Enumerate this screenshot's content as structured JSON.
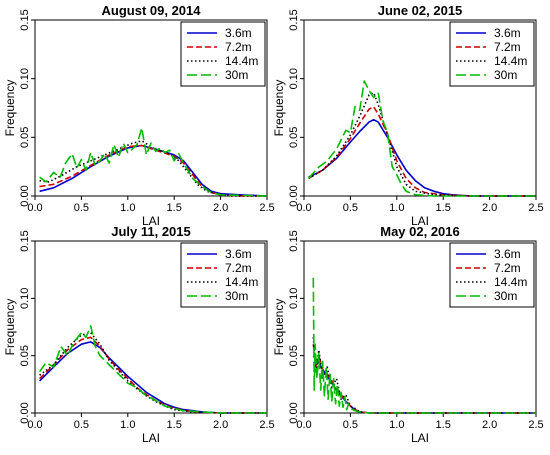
{
  "chart_data": [
    {
      "type": "line",
      "title": "August 09, 2014",
      "xlabel": "LAI",
      "ylabel": "Frequency",
      "xlim": [
        0,
        2.5
      ],
      "ylim": [
        0,
        0.15
      ],
      "xticks": [
        0.0,
        0.5,
        1.0,
        1.5,
        2.0,
        2.5
      ],
      "yticks": [
        0.0,
        0.05,
        0.1,
        0.15
      ],
      "xtick_labels": [
        "0.0",
        "0.5",
        "1.0",
        "1.5",
        "2.0",
        "2.5"
      ],
      "ytick_labels": [
        "0.00",
        "0.05",
        "0.10",
        "0.15"
      ],
      "legend": "top-right",
      "series": [
        {
          "name": "3.6m",
          "color": "#0000cc",
          "dash": "solid",
          "x": [
            0.05,
            0.2,
            0.4,
            0.6,
            0.8,
            1.0,
            1.15,
            1.3,
            1.5,
            1.6,
            1.7,
            1.8,
            1.9,
            2.0,
            2.2,
            2.5
          ],
          "y": [
            0.004,
            0.007,
            0.015,
            0.025,
            0.034,
            0.041,
            0.043,
            0.04,
            0.035,
            0.03,
            0.02,
            0.01,
            0.004,
            0.002,
            0.001,
            0.0
          ]
        },
        {
          "name": "7.2m",
          "color": "#cc0000",
          "dash": "dashed",
          "x": [
            0.05,
            0.2,
            0.4,
            0.6,
            0.8,
            1.0,
            1.15,
            1.3,
            1.5,
            1.6,
            1.7,
            1.8,
            1.9,
            2.0,
            2.2,
            2.5
          ],
          "y": [
            0.008,
            0.01,
            0.017,
            0.026,
            0.035,
            0.042,
            0.043,
            0.039,
            0.034,
            0.028,
            0.018,
            0.008,
            0.003,
            0.001,
            0.0,
            0.0
          ]
        },
        {
          "name": "14.4m",
          "color": "#000000",
          "dash": "dotted",
          "x": [
            0.05,
            0.15,
            0.3,
            0.45,
            0.6,
            0.75,
            0.9,
            1.05,
            1.15,
            1.3,
            1.45,
            1.55,
            1.65,
            1.75,
            1.85,
            1.95,
            2.1,
            2.5
          ],
          "y": [
            0.013,
            0.012,
            0.018,
            0.025,
            0.03,
            0.035,
            0.04,
            0.045,
            0.047,
            0.04,
            0.036,
            0.03,
            0.02,
            0.01,
            0.004,
            0.002,
            0.0,
            0.0
          ]
        },
        {
          "name": "30m",
          "color": "#00bb00",
          "dash": "longdash",
          "x": [
            0.05,
            0.12,
            0.2,
            0.27,
            0.33,
            0.4,
            0.45,
            0.5,
            0.55,
            0.6,
            0.65,
            0.7,
            0.75,
            0.8,
            0.85,
            0.9,
            0.95,
            1.0,
            1.05,
            1.1,
            1.15,
            1.2,
            1.25,
            1.3,
            1.35,
            1.4,
            1.45,
            1.5,
            1.55,
            1.6,
            1.7,
            1.8,
            1.9,
            2.0,
            2.5
          ],
          "y": [
            0.016,
            0.012,
            0.02,
            0.016,
            0.028,
            0.036,
            0.024,
            0.031,
            0.022,
            0.037,
            0.026,
            0.03,
            0.036,
            0.028,
            0.044,
            0.033,
            0.045,
            0.037,
            0.04,
            0.044,
            0.058,
            0.035,
            0.045,
            0.038,
            0.041,
            0.037,
            0.039,
            0.03,
            0.036,
            0.028,
            0.015,
            0.008,
            0.003,
            0.001,
            0.0
          ]
        }
      ]
    },
    {
      "type": "line",
      "title": "June 02, 2015",
      "xlabel": "LAI",
      "ylabel": "Frequency",
      "xlim": [
        0,
        2.5
      ],
      "ylim": [
        0,
        0.15
      ],
      "xticks": [
        0.0,
        0.5,
        1.0,
        1.5,
        2.0,
        2.5
      ],
      "yticks": [
        0.0,
        0.05,
        0.1,
        0.15
      ],
      "xtick_labels": [
        "0.0",
        "0.5",
        "1.0",
        "1.5",
        "2.0",
        "2.5"
      ],
      "ytick_labels": [
        "0.00",
        "0.05",
        "0.10",
        "0.15"
      ],
      "legend": "top-right",
      "series": [
        {
          "name": "3.6m",
          "color": "#0000cc",
          "dash": "solid",
          "x": [
            0.05,
            0.2,
            0.35,
            0.5,
            0.6,
            0.7,
            0.75,
            0.8,
            0.9,
            1.0,
            1.1,
            1.2,
            1.3,
            1.4,
            1.5,
            1.6,
            1.8,
            2.0,
            2.5
          ],
          "y": [
            0.016,
            0.022,
            0.032,
            0.046,
            0.055,
            0.063,
            0.065,
            0.063,
            0.05,
            0.035,
            0.022,
            0.013,
            0.007,
            0.004,
            0.002,
            0.001,
            0.0,
            0.0,
            0.0
          ]
        },
        {
          "name": "7.2m",
          "color": "#cc0000",
          "dash": "dashed",
          "x": [
            0.05,
            0.2,
            0.35,
            0.5,
            0.6,
            0.7,
            0.75,
            0.8,
            0.9,
            1.0,
            1.1,
            1.2,
            1.3,
            1.5,
            1.8,
            2.5
          ],
          "y": [
            0.015,
            0.022,
            0.033,
            0.049,
            0.062,
            0.074,
            0.076,
            0.07,
            0.053,
            0.03,
            0.015,
            0.007,
            0.003,
            0.001,
            0.0,
            0.0
          ]
        },
        {
          "name": "14.4m",
          "color": "#000000",
          "dash": "dotted",
          "x": [
            0.05,
            0.2,
            0.35,
            0.5,
            0.6,
            0.7,
            0.75,
            0.8,
            0.9,
            1.0,
            1.1,
            1.2,
            1.4,
            1.8,
            2.5
          ],
          "y": [
            0.015,
            0.022,
            0.034,
            0.052,
            0.068,
            0.086,
            0.088,
            0.078,
            0.052,
            0.025,
            0.01,
            0.004,
            0.001,
            0.0,
            0.0
          ]
        },
        {
          "name": "30m",
          "color": "#00bb00",
          "dash": "longdash",
          "x": [
            0.05,
            0.15,
            0.25,
            0.35,
            0.45,
            0.5,
            0.55,
            0.6,
            0.65,
            0.7,
            0.75,
            0.8,
            0.85,
            0.9,
            0.95,
            1.0,
            1.05,
            1.1,
            1.2,
            1.4,
            1.8,
            2.5
          ],
          "y": [
            0.015,
            0.024,
            0.03,
            0.04,
            0.056,
            0.054,
            0.076,
            0.073,
            0.098,
            0.09,
            0.084,
            0.088,
            0.064,
            0.054,
            0.025,
            0.018,
            0.01,
            0.004,
            0.001,
            0.0,
            0.0,
            0.0
          ]
        }
      ]
    },
    {
      "type": "line",
      "title": "July 11, 2015",
      "xlabel": "LAI",
      "ylabel": "Frequency",
      "xlim": [
        0,
        2.5
      ],
      "ylim": [
        0,
        0.15
      ],
      "xticks": [
        0.0,
        0.5,
        1.0,
        1.5,
        2.0,
        2.5
      ],
      "yticks": [
        0.0,
        0.05,
        0.1,
        0.15
      ],
      "xtick_labels": [
        "0.0",
        "0.5",
        "1.0",
        "1.5",
        "2.0",
        "2.5"
      ],
      "ytick_labels": [
        "0.00",
        "0.05",
        "0.10",
        "0.15"
      ],
      "legend": "top-right",
      "series": [
        {
          "name": "3.6m",
          "color": "#0000cc",
          "dash": "solid",
          "x": [
            0.05,
            0.2,
            0.35,
            0.5,
            0.6,
            0.7,
            0.8,
            0.9,
            1.0,
            1.1,
            1.2,
            1.3,
            1.4,
            1.5,
            1.6,
            1.7,
            1.8,
            2.0,
            2.5
          ],
          "y": [
            0.028,
            0.04,
            0.052,
            0.06,
            0.062,
            0.057,
            0.048,
            0.04,
            0.032,
            0.025,
            0.018,
            0.013,
            0.008,
            0.005,
            0.003,
            0.002,
            0.001,
            0.0,
            0.0
          ]
        },
        {
          "name": "7.2m",
          "color": "#cc0000",
          "dash": "dashed",
          "x": [
            0.05,
            0.2,
            0.35,
            0.5,
            0.6,
            0.7,
            0.8,
            0.9,
            1.0,
            1.1,
            1.2,
            1.3,
            1.4,
            1.5,
            1.7,
            2.0,
            2.5
          ],
          "y": [
            0.03,
            0.042,
            0.055,
            0.064,
            0.066,
            0.058,
            0.047,
            0.038,
            0.03,
            0.022,
            0.016,
            0.011,
            0.007,
            0.004,
            0.001,
            0.0,
            0.0
          ]
        },
        {
          "name": "14.4m",
          "color": "#000000",
          "dash": "dotted",
          "x": [
            0.05,
            0.2,
            0.35,
            0.5,
            0.6,
            0.7,
            0.8,
            0.9,
            1.0,
            1.1,
            1.2,
            1.3,
            1.4,
            1.5,
            1.7,
            2.0,
            2.5
          ],
          "y": [
            0.033,
            0.042,
            0.057,
            0.068,
            0.07,
            0.06,
            0.046,
            0.037,
            0.028,
            0.021,
            0.015,
            0.01,
            0.006,
            0.003,
            0.001,
            0.0,
            0.0
          ]
        },
        {
          "name": "30m",
          "color": "#00bb00",
          "dash": "longdash",
          "x": [
            0.05,
            0.12,
            0.2,
            0.28,
            0.35,
            0.42,
            0.5,
            0.55,
            0.6,
            0.65,
            0.7,
            0.8,
            0.9,
            1.0,
            1.1,
            1.2,
            1.3,
            1.4,
            1.5,
            1.6,
            2.0,
            2.5
          ],
          "y": [
            0.036,
            0.044,
            0.04,
            0.058,
            0.05,
            0.062,
            0.07,
            0.066,
            0.076,
            0.058,
            0.05,
            0.042,
            0.034,
            0.026,
            0.022,
            0.015,
            0.011,
            0.006,
            0.004,
            0.002,
            0.0,
            0.0
          ]
        }
      ]
    },
    {
      "type": "line",
      "title": "May 02, 2016",
      "xlabel": "LAI",
      "ylabel": "Frequency",
      "xlim": [
        0,
        2.5
      ],
      "ylim": [
        0,
        0.15
      ],
      "xticks": [
        0.0,
        0.5,
        1.0,
        1.5,
        2.0,
        2.5
      ],
      "yticks": [
        0.0,
        0.05,
        0.1,
        0.15
      ],
      "xtick_labels": [
        "0.0",
        "0.5",
        "1.0",
        "1.5",
        "2.0",
        "2.5"
      ],
      "ytick_labels": [
        "0.00",
        "0.05",
        "0.10",
        "0.15"
      ],
      "legend": "top-right",
      "series": [
        {
          "name": "3.6m",
          "color": "#0000cc",
          "dash": "solid",
          "x": [
            0.1,
            0.15,
            0.2,
            0.25,
            0.3,
            0.35,
            0.4,
            0.45,
            0.5,
            0.55,
            0.6,
            0.7,
            1.0,
            2.5
          ],
          "y": [
            0.05,
            0.045,
            0.038,
            0.032,
            0.026,
            0.02,
            0.015,
            0.01,
            0.006,
            0.003,
            0.001,
            0.0,
            0.0,
            0.0
          ]
        },
        {
          "name": "7.2m",
          "color": "#cc0000",
          "dash": "dashed",
          "x": [
            0.1,
            0.13,
            0.16,
            0.2,
            0.25,
            0.3,
            0.35,
            0.4,
            0.45,
            0.5,
            0.55,
            0.6,
            0.7,
            1.0,
            2.5
          ],
          "y": [
            0.06,
            0.04,
            0.05,
            0.038,
            0.034,
            0.028,
            0.022,
            0.016,
            0.011,
            0.006,
            0.003,
            0.001,
            0.0,
            0.0,
            0.0
          ]
        },
        {
          "name": "14.4m",
          "color": "#000000",
          "dash": "dotted",
          "x": [
            0.1,
            0.13,
            0.16,
            0.2,
            0.25,
            0.3,
            0.35,
            0.4,
            0.45,
            0.5,
            0.55,
            0.6,
            0.7,
            1.0,
            2.5
          ],
          "y": [
            0.066,
            0.035,
            0.055,
            0.03,
            0.04,
            0.022,
            0.03,
            0.012,
            0.016,
            0.006,
            0.004,
            0.001,
            0.0,
            0.0,
            0.0
          ]
        },
        {
          "name": "30m",
          "color": "#00bb00",
          "dash": "longdash",
          "x": [
            0.1,
            0.11,
            0.12,
            0.14,
            0.16,
            0.18,
            0.2,
            0.22,
            0.24,
            0.26,
            0.28,
            0.3,
            0.32,
            0.34,
            0.36,
            0.38,
            0.4,
            0.42,
            0.44,
            0.46,
            0.48,
            0.5,
            0.55,
            0.6,
            0.7,
            1.0,
            2.5
          ],
          "y": [
            0.118,
            0.02,
            0.06,
            0.03,
            0.052,
            0.02,
            0.045,
            0.015,
            0.04,
            0.012,
            0.035,
            0.01,
            0.03,
            0.008,
            0.025,
            0.006,
            0.018,
            0.005,
            0.014,
            0.003,
            0.008,
            0.004,
            0.002,
            0.001,
            0.0,
            0.0,
            0.0
          ]
        }
      ]
    }
  ]
}
